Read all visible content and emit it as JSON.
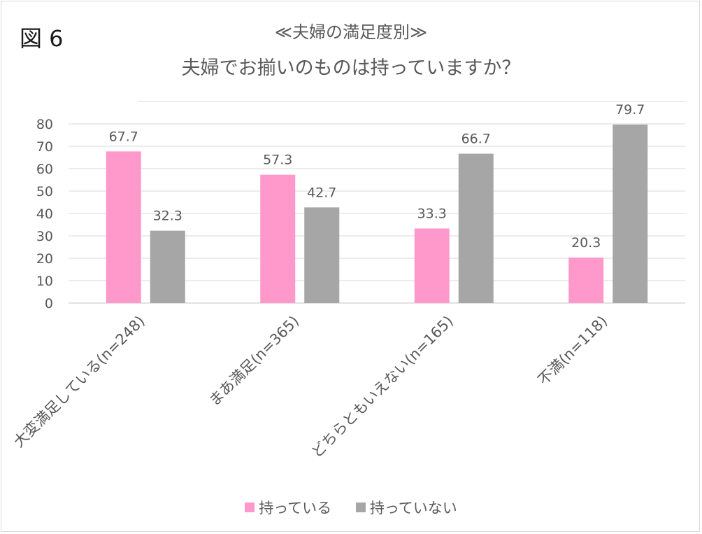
{
  "figure_label": "図 6",
  "chart_data": {
    "type": "bar",
    "title": "≪夫婦の満足度別≫",
    "subtitle": "夫婦でお揃いのものは持っていますか？",
    "categories": [
      "大変満足している(n=248)",
      "まあ満足(n=365)",
      "どちらともいえない(n=165)",
      "不満(n=118)"
    ],
    "series": [
      {
        "name": "持っている",
        "values": [
          67.7,
          57.3,
          33.3,
          20.3
        ],
        "color": "#ff99cc"
      },
      {
        "name": "持っていない",
        "values": [
          32.3,
          42.7,
          66.7,
          79.7
        ],
        "color": "#a6a6a6"
      }
    ],
    "data_labels": [
      [
        "67.7",
        "57.3",
        "33.3",
        "20.3"
      ],
      [
        "32.3",
        "42.7",
        "66.7",
        "79.7"
      ]
    ],
    "yticks": [
      "0",
      "10",
      "20",
      "30",
      "40",
      "50",
      "60",
      "70",
      "80"
    ],
    "ylim": [
      0,
      80
    ],
    "grid": true,
    "legend_position": "bottom",
    "gridline_color": "#d9d9d9",
    "text_color": "#595959"
  }
}
